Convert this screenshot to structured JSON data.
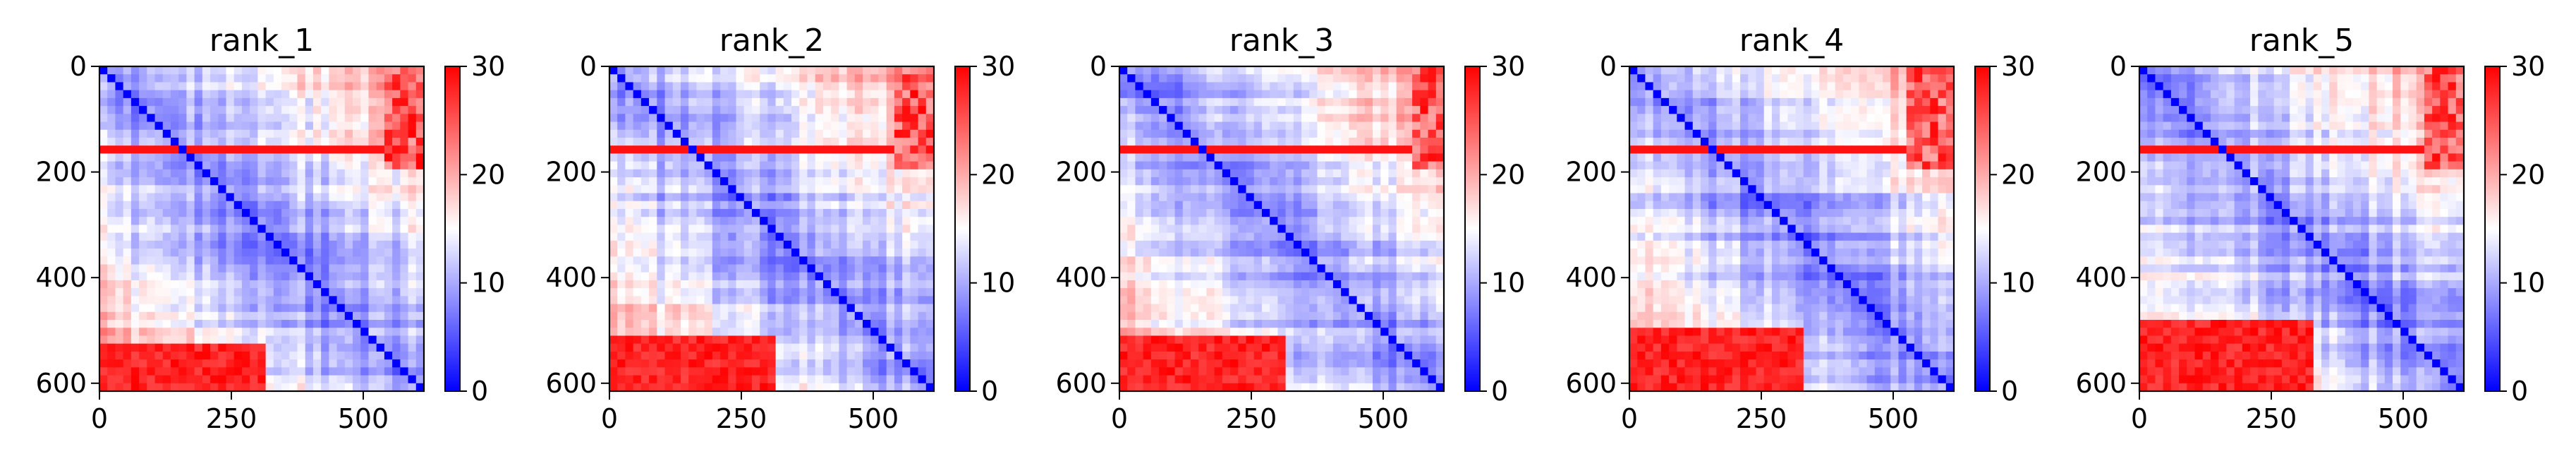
{
  "chart_data": [
    {
      "type": "heatmap",
      "title": "rank_1",
      "xlim": [
        0,
        615
      ],
      "ylim": [
        615,
        0
      ],
      "x_ticks": [
        0,
        250,
        500
      ],
      "y_ticks": [
        0,
        200,
        400,
        600
      ],
      "colorbar": {
        "min": 0,
        "max": 30,
        "ticks": [
          0,
          10,
          20,
          30
        ],
        "colormap": "bwr"
      },
      "red_row_band": [
        150,
        162
      ],
      "bottom_block": {
        "rows_start": 520,
        "cols_end": 310
      },
      "right_block_cols_start": 540,
      "grid": false
    },
    {
      "type": "heatmap",
      "title": "rank_2",
      "xlim": [
        0,
        615
      ],
      "ylim": [
        615,
        0
      ],
      "x_ticks": [
        0,
        250,
        500
      ],
      "y_ticks": [
        0,
        200,
        400,
        600
      ],
      "colorbar": {
        "min": 0,
        "max": 30,
        "ticks": [
          0,
          10,
          20,
          30
        ],
        "colormap": "bwr"
      },
      "red_row_band": [
        150,
        162
      ],
      "bottom_block": {
        "rows_start": 515,
        "cols_end": 320
      },
      "right_block_cols_start": 545,
      "grid": false
    },
    {
      "type": "heatmap",
      "title": "rank_3",
      "xlim": [
        0,
        615
      ],
      "ylim": [
        615,
        0
      ],
      "x_ticks": [
        0,
        250,
        500
      ],
      "y_ticks": [
        0,
        200,
        400,
        600
      ],
      "colorbar": {
        "min": 0,
        "max": 30,
        "ticks": [
          0,
          10,
          20,
          30
        ],
        "colormap": "bwr"
      },
      "red_row_band": [
        150,
        162
      ],
      "bottom_block": {
        "rows_start": 505,
        "cols_end": 320
      },
      "right_block_cols_start": 560,
      "grid": false
    },
    {
      "type": "heatmap",
      "title": "rank_4",
      "xlim": [
        0,
        615
      ],
      "ylim": [
        615,
        0
      ],
      "x_ticks": [
        0,
        250,
        500
      ],
      "y_ticks": [
        0,
        200,
        400,
        600
      ],
      "colorbar": {
        "min": 0,
        "max": 30,
        "ticks": [
          0,
          10,
          20,
          30
        ],
        "colormap": "bwr"
      },
      "red_row_band": [
        150,
        162
      ],
      "bottom_block": {
        "rows_start": 490,
        "cols_end": 330
      },
      "right_block_cols_start": 530,
      "grid": false
    },
    {
      "type": "heatmap",
      "title": "rank_5",
      "xlim": [
        0,
        615
      ],
      "ylim": [
        615,
        0
      ],
      "x_ticks": [
        0,
        250,
        500
      ],
      "y_ticks": [
        0,
        200,
        400,
        600
      ],
      "colorbar": {
        "min": 0,
        "max": 30,
        "ticks": [
          0,
          10,
          20,
          30
        ],
        "colormap": "bwr"
      },
      "red_row_band": [
        150,
        162
      ],
      "bottom_block": {
        "rows_start": 480,
        "cols_end": 330
      },
      "right_block_cols_start": 535,
      "grid": false
    }
  ]
}
